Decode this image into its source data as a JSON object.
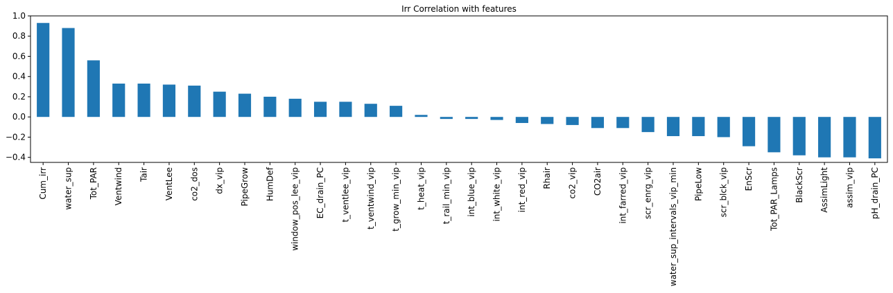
{
  "chart_data": {
    "type": "bar",
    "title": "Irr Correlation with features",
    "xlabel": "",
    "ylabel": "",
    "ylim": [
      -0.45,
      1.0
    ],
    "yticks": [
      "1.0",
      "0.8",
      "0.6",
      "0.4",
      "0.2",
      "0.0",
      "−0.2",
      "−0.4"
    ],
    "yticks_values": [
      1.0,
      0.8,
      0.6,
      0.4,
      0.2,
      0.0,
      -0.2,
      -0.4
    ],
    "grid": false,
    "bar_color": "#1f77b4",
    "categories": [
      "Cum_irr",
      "water_sup",
      "Tot_PAR",
      "Ventwind",
      "Tair",
      "VentLee",
      "co2_dos",
      "dx_vip",
      "PipeGrow",
      "HumDef",
      "window_pos_lee_vip",
      "EC_drain_PC",
      "t_ventlee_vip",
      "t_ventwind_vip",
      "t_grow_min_vip",
      "t_heat_vip",
      "t_rail_min_vip",
      "int_blue_vip",
      "int_white_vip",
      "int_red_vip",
      "Rhair",
      "co2_vip",
      "CO2air",
      "int_farred_vip",
      "scr_enrg_vip",
      "water_sup_intervals_vip_min",
      "PipeLow",
      "scr_blck_vip",
      "EnScr",
      "Tot_PAR_Lamps",
      "BlackScr",
      "AssimLight",
      "assim_vip",
      "pH_drain_PC"
    ],
    "values": [
      0.93,
      0.88,
      0.56,
      0.33,
      0.33,
      0.32,
      0.31,
      0.25,
      0.23,
      0.2,
      0.18,
      0.15,
      0.15,
      0.13,
      0.11,
      0.02,
      -0.02,
      -0.02,
      -0.03,
      -0.06,
      -0.07,
      -0.08,
      -0.11,
      -0.11,
      -0.15,
      -0.19,
      -0.19,
      -0.2,
      -0.29,
      -0.35,
      -0.38,
      -0.4,
      -0.4,
      -0.41
    ]
  }
}
